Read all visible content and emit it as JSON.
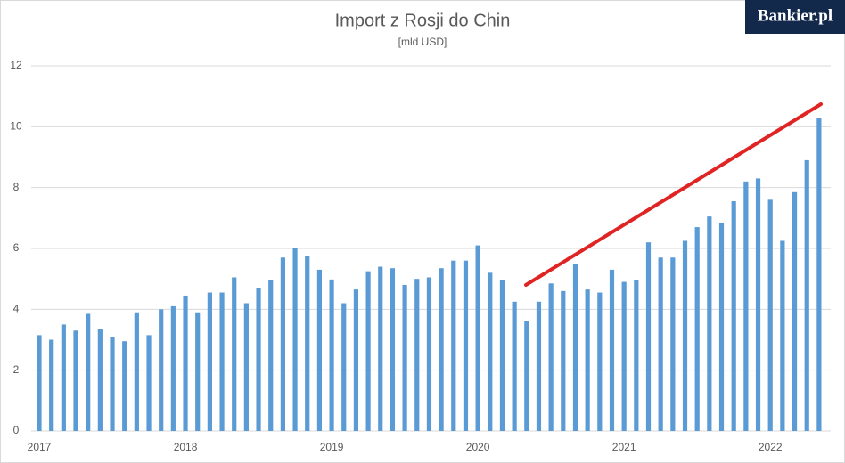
{
  "logo": "Bankier.pl",
  "chart_data": {
    "type": "bar",
    "title": "Import z Rosji do Chin",
    "subtitle": "[mld USD]",
    "categories": [
      "2017",
      null,
      null,
      null,
      null,
      null,
      null,
      null,
      null,
      null,
      null,
      null,
      "2018",
      null,
      null,
      null,
      null,
      null,
      null,
      null,
      null,
      null,
      null,
      null,
      "2019",
      null,
      null,
      null,
      null,
      null,
      null,
      null,
      null,
      null,
      null,
      null,
      "2020",
      null,
      null,
      null,
      null,
      null,
      null,
      null,
      null,
      null,
      null,
      null,
      "2021",
      null,
      null,
      null,
      null,
      null,
      null,
      null,
      null,
      null,
      null,
      null,
      "2022",
      null,
      null,
      null,
      null
    ],
    "values": [
      3.15,
      3.0,
      3.5,
      3.3,
      3.85,
      3.35,
      3.1,
      2.95,
      3.9,
      3.15,
      4.0,
      4.1,
      4.45,
      3.9,
      4.55,
      4.55,
      5.05,
      4.2,
      4.7,
      4.95,
      5.7,
      6.0,
      5.75,
      5.3,
      4.98,
      4.2,
      4.65,
      5.25,
      5.4,
      5.35,
      4.8,
      5.0,
      5.05,
      5.35,
      5.6,
      5.6,
      6.1,
      5.2,
      4.95,
      4.25,
      3.6,
      4.25,
      4.85,
      4.6,
      5.5,
      4.65,
      4.55,
      5.3,
      4.9,
      4.95,
      6.2,
      5.7,
      5.7,
      6.25,
      6.7,
      7.05,
      6.85,
      7.55,
      8.2,
      8.3,
      7.6,
      6.25,
      7.85,
      8.9,
      10.3
    ],
    "color": "#5b9bd5",
    "ylim": [
      0,
      12
    ],
    "yticks": [
      0,
      2,
      4,
      6,
      8,
      10,
      12
    ],
    "grid": true
  }
}
